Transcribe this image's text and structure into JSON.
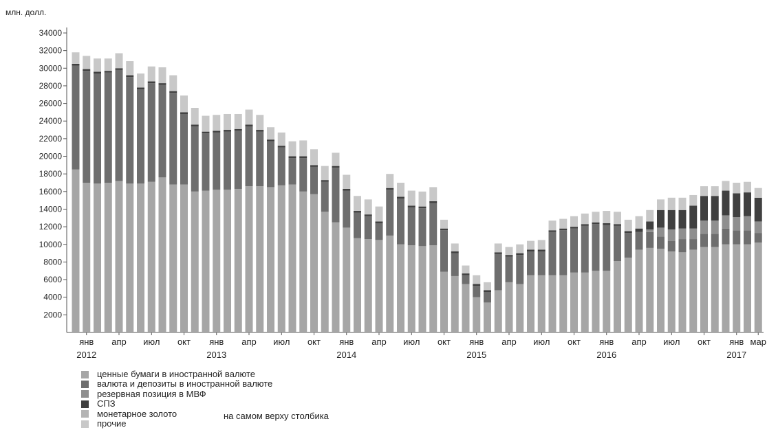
{
  "chart_data": {
    "type": "bar",
    "stacked": true,
    "ylabel": "млн. долл.",
    "ylim": [
      0,
      34000
    ],
    "yticks": [
      2000,
      4000,
      6000,
      8000,
      10000,
      12000,
      14000,
      16000,
      18000,
      20000,
      22000,
      24000,
      26000,
      28000,
      30000,
      32000,
      34000
    ],
    "grid": false,
    "x_tick_labels": [
      {
        "index": 1,
        "label": "янв",
        "year": "2012"
      },
      {
        "index": 4,
        "label": "апр"
      },
      {
        "index": 7,
        "label": "июл"
      },
      {
        "index": 10,
        "label": "окт"
      },
      {
        "index": 13,
        "label": "янв",
        "year": "2013"
      },
      {
        "index": 16,
        "label": "апр"
      },
      {
        "index": 19,
        "label": "июл"
      },
      {
        "index": 22,
        "label": "окт"
      },
      {
        "index": 25,
        "label": "янв",
        "year": "2014"
      },
      {
        "index": 28,
        "label": "апр"
      },
      {
        "index": 31,
        "label": "июл"
      },
      {
        "index": 34,
        "label": "окт"
      },
      {
        "index": 37,
        "label": "янв",
        "year": "2015"
      },
      {
        "index": 40,
        "label": "апр"
      },
      {
        "index": 43,
        "label": "июл"
      },
      {
        "index": 46,
        "label": "окт"
      },
      {
        "index": 49,
        "label": "янв",
        "year": "2016"
      },
      {
        "index": 52,
        "label": "апр"
      },
      {
        "index": 55,
        "label": "июл"
      },
      {
        "index": 58,
        "label": "окт"
      },
      {
        "index": 61,
        "label": "янв",
        "year": "2017"
      },
      {
        "index": 63,
        "label": "мар"
      }
    ],
    "series": [
      {
        "name": "ценные бумаги в иностранной валюте",
        "color": "#a6a6a6",
        "values": [
          18500,
          17000,
          16900,
          17000,
          17200,
          16900,
          16900,
          17100,
          17600,
          16800,
          16800,
          16000,
          16100,
          16200,
          16200,
          16300,
          16600,
          16600,
          16500,
          16700,
          16800,
          16000,
          15700,
          13700,
          12500,
          11900,
          10700,
          10600,
          10500,
          11000,
          10000,
          9900,
          9800,
          9900,
          6900,
          6400,
          5500,
          4000,
          3400,
          4800,
          5700,
          5500,
          6500,
          6500,
          6500,
          6500,
          6800,
          6800,
          7000,
          7000,
          8100,
          8500,
          9400,
          9600,
          9500,
          9200,
          9100,
          9400,
          9700,
          9700,
          10000,
          10000,
          10000,
          10200
        ]
      },
      {
        "name": "валюта и депозиты в иностранной валюте",
        "color": "#6e6e6e",
        "values": [
          11800,
          12700,
          12500,
          12500,
          12600,
          12100,
          10700,
          11200,
          10500,
          10400,
          8000,
          7400,
          6500,
          6500,
          6600,
          6600,
          6800,
          6200,
          5200,
          4300,
          3000,
          3800,
          3100,
          3400,
          6200,
          4200,
          2900,
          2600,
          1900,
          5200,
          5200,
          4300,
          4300,
          4800,
          4700,
          2600,
          1000,
          1300,
          1200,
          4100,
          2900,
          3300,
          2700,
          2700,
          4900,
          5100,
          5000,
          5300,
          5300,
          5200,
          4000,
          2800,
          2000,
          1800,
          1400,
          1200,
          1500,
          1200,
          1500,
          1500,
          1800,
          1600,
          1600,
          1100
        ]
      },
      {
        "name": "резервная позиция в МВФ",
        "color": "#8f8f8f",
        "values": [
          0,
          0,
          0,
          0,
          0,
          0,
          0,
          0,
          0,
          0,
          0,
          0,
          0,
          0,
          0,
          0,
          0,
          0,
          0,
          0,
          0,
          0,
          0,
          0,
          0,
          0,
          0,
          0,
          0,
          0,
          0,
          0,
          0,
          0,
          0,
          0,
          0,
          0,
          0,
          0,
          0,
          0,
          0,
          0,
          0,
          0,
          0,
          0,
          0,
          0,
          0,
          0,
          0,
          300,
          1000,
          1300,
          1200,
          1200,
          1500,
          1500,
          1500,
          1500,
          1600,
          1300
        ]
      },
      {
        "name": "СПЗ",
        "color": "#404040",
        "values": [
          200,
          200,
          200,
          200,
          200,
          200,
          200,
          200,
          200,
          200,
          200,
          200,
          200,
          200,
          200,
          200,
          200,
          200,
          200,
          200,
          200,
          200,
          200,
          200,
          200,
          200,
          200,
          200,
          200,
          200,
          200,
          200,
          200,
          200,
          200,
          200,
          200,
          200,
          200,
          200,
          200,
          200,
          200,
          200,
          200,
          200,
          200,
          200,
          200,
          200,
          200,
          200,
          400,
          900,
          2000,
          2200,
          2100,
          2600,
          2800,
          2800,
          2800,
          2700,
          2700,
          2700
        ]
      },
      {
        "name": "монетарное золото",
        "color": "#b4b4b4",
        "values": [
          0,
          0,
          0,
          0,
          0,
          0,
          0,
          0,
          0,
          0,
          0,
          0,
          0,
          0,
          0,
          0,
          0,
          0,
          0,
          0,
          0,
          0,
          0,
          0,
          0,
          0,
          0,
          0,
          0,
          0,
          0,
          0,
          0,
          0,
          0,
          0,
          0,
          0,
          0,
          0,
          0,
          0,
          0,
          0,
          0,
          0,
          0,
          0,
          0,
          0,
          0,
          0,
          0,
          0,
          0,
          0,
          0,
          0,
          0,
          0,
          0,
          0,
          0,
          0
        ]
      },
      {
        "name": "прочие",
        "color": "#c8c8c8",
        "values": [
          1300,
          1500,
          1500,
          1400,
          1700,
          1600,
          1600,
          1700,
          1800,
          1800,
          1900,
          1900,
          1800,
          1800,
          1800,
          1700,
          1700,
          1700,
          1400,
          1500,
          1700,
          1800,
          1800,
          1600,
          1500,
          1600,
          1700,
          1700,
          1700,
          1600,
          1600,
          1700,
          1700,
          1600,
          1000,
          900,
          900,
          1000,
          900,
          1000,
          900,
          1000,
          1000,
          1100,
          1100,
          1100,
          1200,
          1200,
          1200,
          1400,
          1400,
          1300,
          1400,
          1300,
          1200,
          1400,
          1400,
          1200,
          1100,
          1100,
          1100,
          1200,
          1200,
          1100
        ]
      }
    ],
    "annotation": "на самом верху столбика"
  }
}
